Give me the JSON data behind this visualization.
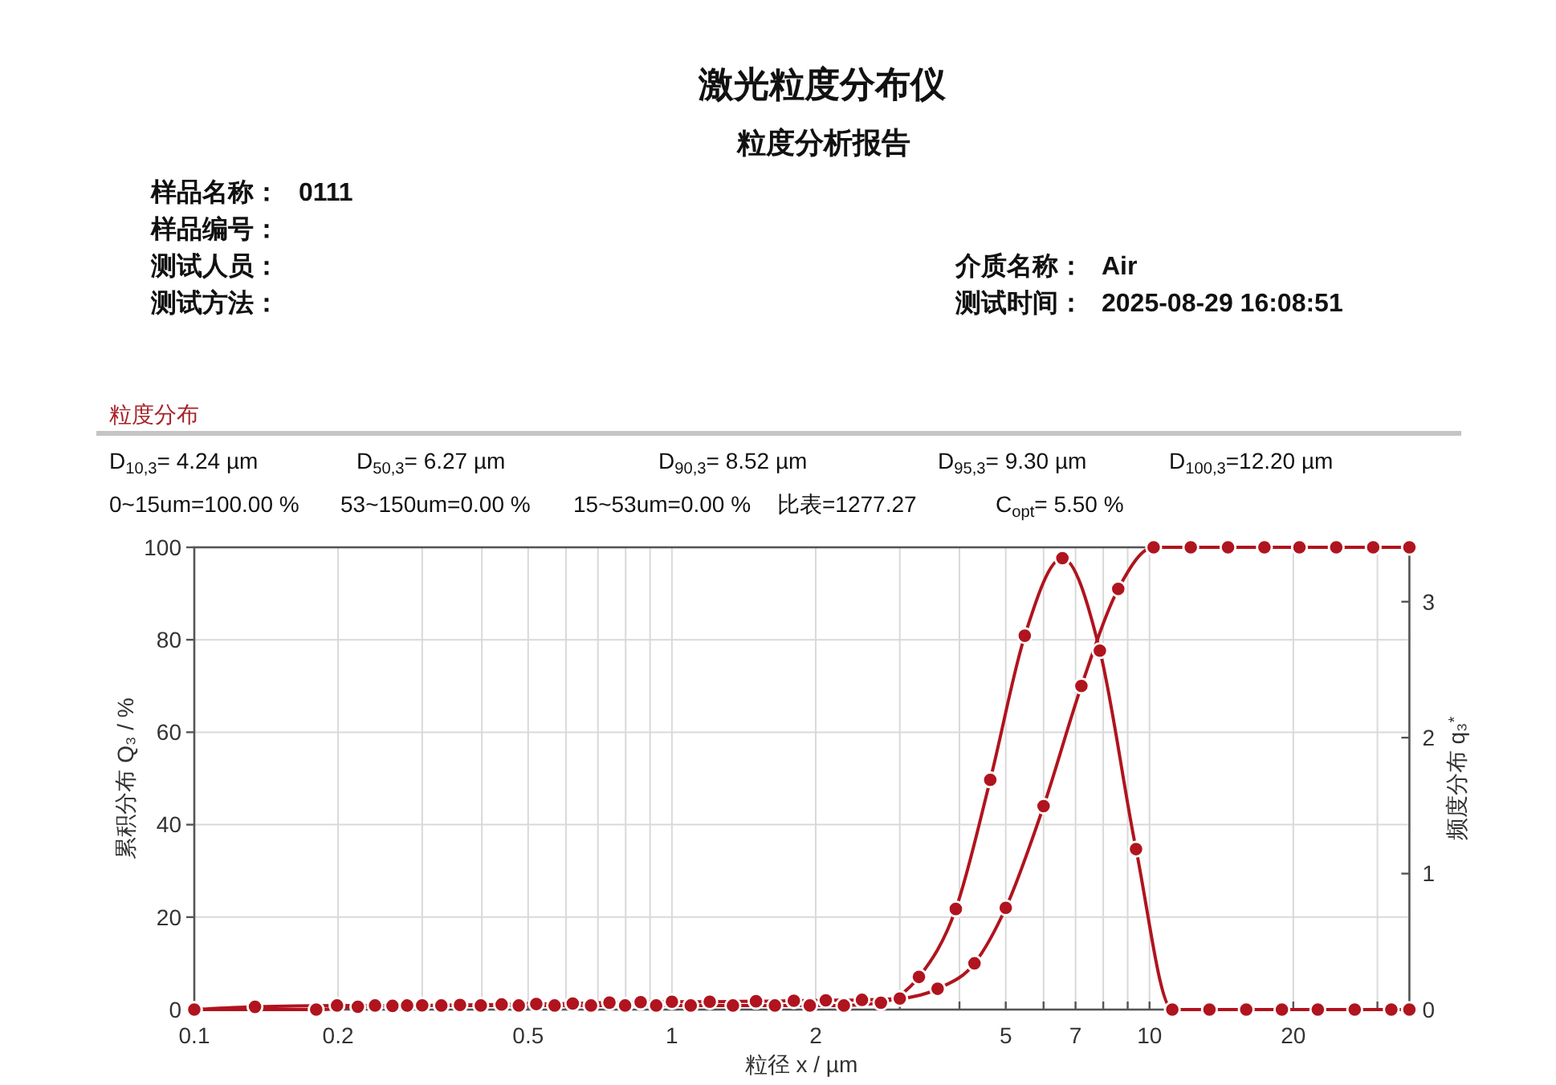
{
  "chart_data": {
    "type": "line",
    "title": "激光粒度分布仪",
    "subtitle": "粒度分析报告",
    "annotations": [
      "样品名称：",
      "0111",
      "样品编号：",
      "测试人员：",
      "介质名称：",
      "Air",
      "测试方法：",
      "测试时间：",
      "2025-08-29 16:08:51",
      "粒度分布",
      "D$_{10,3}$= 4.24 µm",
      "D$_{50,3}$= 6.27 µm",
      "D$_{90,3}$= 8.52 µm",
      "D$_{95,3}$= 9.30 µm",
      "D$_{100,3}$=12.20 µm",
      "0~15um=100.00 %",
      "53~150um=0.00 %",
      "15~53um=0.00 %",
      "比表=1277.27",
      "C$_{opt}$= 5.50 %"
    ],
    "xlabel": "粒径 x / µm",
    "ylabel": "累积分布 Q₃ / %",
    "y2label": "频度分布 q₃$^{*}$",
    "log": "x",
    "xlim": [
      0.1,
      35
    ],
    "xticks": [
      0.1,
      0.2,
      {
        "value": 0.3,
        "label": null
      },
      {
        "value": 0.4,
        "label": null
      },
      0.5,
      {
        "value": 0.6,
        "label": null
      },
      {
        "value": 0.7,
        "label": null
      },
      {
        "value": 0.8,
        "label": null
      },
      {
        "value": 0.9,
        "label": null
      },
      1,
      2,
      {
        "value": 3,
        "label": null
      },
      {
        "value": 4,
        "label": null
      },
      5,
      {
        "value": 6,
        "label": null
      },
      7,
      {
        "value": 8,
        "label": null
      },
      {
        "value": 9,
        "label": null
      },
      10,
      20,
      {
        "value": 30,
        "label": null
      }
    ],
    "ylim": [
      0,
      100
    ],
    "yticks": [
      0,
      20,
      40,
      60,
      80,
      100
    ],
    "y2lim": [
      0,
      3.4
    ],
    "y2ticks": [
      0,
      1,
      2,
      3
    ],
    "grid": true,
    "marker": "circle",
    "series": [
      {
        "color": "#b0141e",
        "x": [
          0.1,
          0.18,
          0.22,
          0.26,
          0.3,
          0.36,
          0.44,
          0.52,
          0.62,
          0.74,
          0.86,
          1,
          1.2,
          1.5,
          1.8,
          2.1,
          2.5,
          3,
          3.6,
          4.3,
          5,
          6,
          7.2,
          8.6,
          10.2,
          12.2,
          14.6,
          17.4,
          20.6,
          24.6,
          29.4,
          35
        ],
        "values": [
          0,
          0,
          0.6,
          0.8,
          0.9,
          1,
          1.1,
          1.2,
          1.3,
          1.5,
          1.6,
          1.7,
          1.7,
          1.8,
          1.9,
          2,
          2.1,
          2.4,
          4.5,
          10,
          22,
          44,
          70,
          91,
          100,
          100,
          100,
          100,
          100,
          100,
          100,
          100
        ]
      },
      {
        "axis": "y2",
        "color": "#b0141e",
        "x": [
          0.1,
          0.134,
          0.199,
          0.239,
          0.279,
          0.329,
          0.398,
          0.478,
          0.568,
          0.677,
          0.798,
          0.927,
          1.095,
          1.342,
          1.643,
          1.944,
          2.291,
          2.739,
          3.29,
          3.93,
          4.64,
          5.48,
          6.57,
          7.87,
          9.37,
          11.16,
          13.35,
          15.94,
          18.93,
          22.51,
          26.89,
          32.08,
          35
        ],
        "values": [
          0,
          0.02,
          0.03,
          0.03,
          0.03,
          0.03,
          0.03,
          0.03,
          0.03,
          0.03,
          0.03,
          0.03,
          0.03,
          0.03,
          0.03,
          0.03,
          0.03,
          0.05,
          0.24,
          0.74,
          1.69,
          2.75,
          3.32,
          2.64,
          1.18,
          0,
          0,
          0,
          0,
          0,
          0,
          0,
          0
        ]
      }
    ]
  }
}
